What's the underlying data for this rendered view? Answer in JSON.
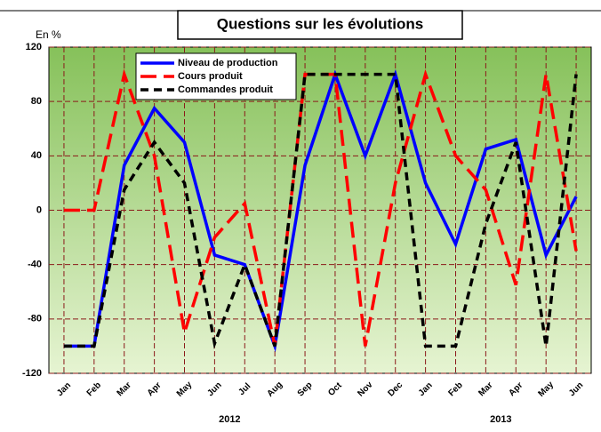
{
  "chart_data": {
    "type": "line",
    "title": "Questions sur les évolutions",
    "y_unit_label": "En %",
    "categories": [
      "Jan",
      "Feb",
      "Mar",
      "Apr",
      "May",
      "Jun",
      "Jul",
      "Aug",
      "Sep",
      "Oct",
      "Nov",
      "Dec",
      "Jan",
      "Feb",
      "Mar",
      "Apr",
      "May",
      "Jun"
    ],
    "year_groups": [
      {
        "label": "2012",
        "count": 12
      },
      {
        "label": "2013",
        "count": 6
      }
    ],
    "series": [
      {
        "name": "Niveau de production",
        "color": "#0000ff",
        "dash": "none",
        "values": [
          -100,
          -100,
          33,
          75,
          50,
          -33,
          -40,
          -100,
          33,
          100,
          40,
          100,
          20,
          -25,
          45,
          52,
          -33,
          10
        ]
      },
      {
        "name": "Cours produit",
        "color": "#ff0000",
        "dash": "18,8",
        "values": [
          0,
          0,
          100,
          40,
          -90,
          -20,
          5,
          -100,
          100,
          100,
          -100,
          20,
          100,
          40,
          15,
          -55,
          100,
          -30
        ]
      },
      {
        "name": "Commandes produit",
        "color": "#000000",
        "dash": "9,6",
        "values": [
          -100,
          -100,
          15,
          50,
          20,
          -98,
          -40,
          -100,
          100,
          100,
          100,
          100,
          -100,
          -100,
          -10,
          50,
          -100,
          100
        ]
      }
    ],
    "ylim": [
      -120,
      120
    ],
    "yticks": [
      -120,
      -80,
      -40,
      0,
      40,
      80,
      120
    ],
    "grid": true
  }
}
